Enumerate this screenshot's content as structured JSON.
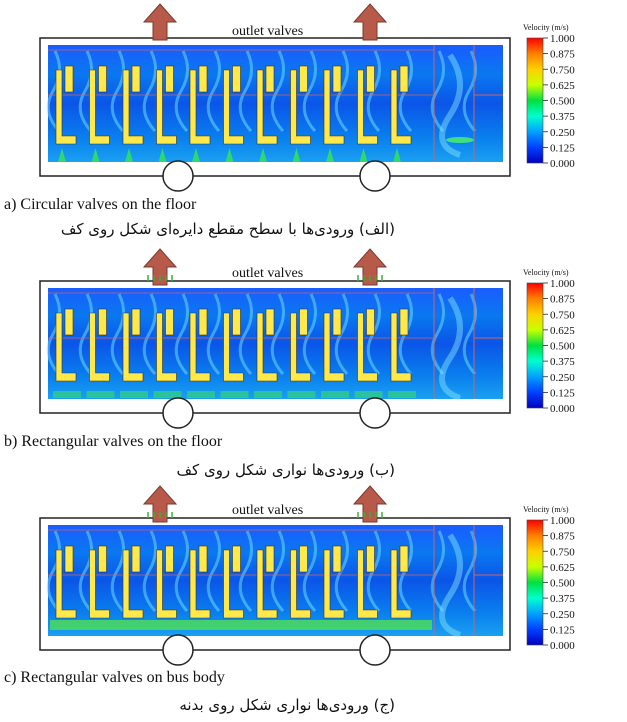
{
  "colorbar": {
    "title": "Velocity",
    "unit_num": "m",
    "unit_den": "s",
    "ticks": [
      "1.000",
      "0.875",
      "0.750",
      "0.625",
      "0.500",
      "0.375",
      "0.250",
      "0.125",
      "0.000"
    ],
    "colors": [
      "#ff0000",
      "#ff8000",
      "#ffd000",
      "#c8ff00",
      "#00e040",
      "#00ffd0",
      "#00a0ff",
      "#0040ff",
      "#0000c0"
    ]
  },
  "panels": [
    {
      "outlet_label": "outlet valves",
      "caption_en": "a) Circular valves on the floor",
      "caption_fa": "(الف) ورودی‌ها با سطح مقطع دایره‌ای شکل روی کف",
      "inlet_style": "circular"
    },
    {
      "outlet_label": "outlet valves",
      "caption_en": "b) Rectangular valves on the floor",
      "caption_fa": "(ب) ورودی‌ها نواری شکل روی کف",
      "inlet_style": "floor-strip"
    },
    {
      "outlet_label": "outlet valves",
      "caption_en": "c) Rectangular valves on bus body",
      "caption_fa": "(ج) ورودی‌ها نواری شکل روی بدنه",
      "inlet_style": "body-strip"
    }
  ]
}
